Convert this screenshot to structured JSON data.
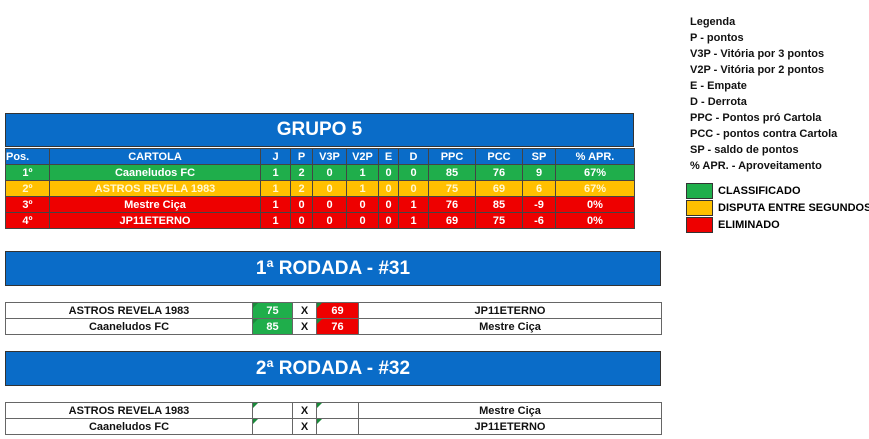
{
  "group": {
    "title": "GRUPO 5",
    "headers": [
      "Pos.",
      "CARTOLA",
      "J",
      "P",
      "V3P",
      "V2P",
      "E",
      "D",
      "PPC",
      "PCC",
      "SP",
      "% APR."
    ],
    "rows": [
      [
        "1º",
        "Caaneludos FC",
        "1",
        "2",
        "0",
        "1",
        "0",
        "0",
        "85",
        "76",
        "9",
        "67%"
      ],
      [
        "2º",
        "ASTROS REVELA 1983",
        "1",
        "2",
        "0",
        "1",
        "0",
        "0",
        "75",
        "69",
        "6",
        "67%"
      ],
      [
        "3º",
        "Mestre Ciça",
        "1",
        "0",
        "0",
        "0",
        "0",
        "1",
        "76",
        "85",
        "-9",
        "0%"
      ],
      [
        "4º",
        "JP11ETERNO",
        "1",
        "0",
        "0",
        "0",
        "0",
        "1",
        "69",
        "75",
        "-6",
        "0%"
      ]
    ],
    "row_status": [
      "classificado",
      "disputa",
      "eliminado",
      "eliminado"
    ]
  },
  "rounds": [
    {
      "title": "1ª RODADA - #31",
      "matches": [
        {
          "home": "ASTROS REVELA 1983",
          "home_score": "75",
          "sep": "X",
          "away_score": "69",
          "away": "JP11ETERNO"
        },
        {
          "home": "Caaneludos FC",
          "home_score": "85",
          "sep": "X",
          "away_score": "76",
          "away": "Mestre Ciça"
        }
      ]
    },
    {
      "title": "2ª RODADA - #32",
      "matches": [
        {
          "home": "ASTROS REVELA 1983",
          "home_score": "",
          "sep": "X",
          "away_score": "",
          "away": "Mestre Ciça"
        },
        {
          "home": "Caaneludos FC",
          "home_score": "",
          "sep": "X",
          "away_score": "",
          "away": "JP11ETERNO"
        }
      ]
    }
  ],
  "legend": {
    "title": "Legenda",
    "items": [
      "P - pontos",
      "V3P - Vitória por 3 pontos",
      "V2P - Vitória por 2 pontos",
      "E - Empate",
      "D - Derrota",
      "PPC - Pontos pró Cartola",
      "PCC - pontos contra Cartola",
      "SP - saldo de pontos",
      "% APR. - Aproveitamento"
    ],
    "colors": [
      {
        "label": "CLASSIFICADO",
        "color": "#1fae4b"
      },
      {
        "label": "DISPUTA ENTRE SEGUNDOS",
        "color": "#ffc000"
      },
      {
        "label": "ELIMINADO",
        "color": "#ee0000"
      }
    ]
  }
}
